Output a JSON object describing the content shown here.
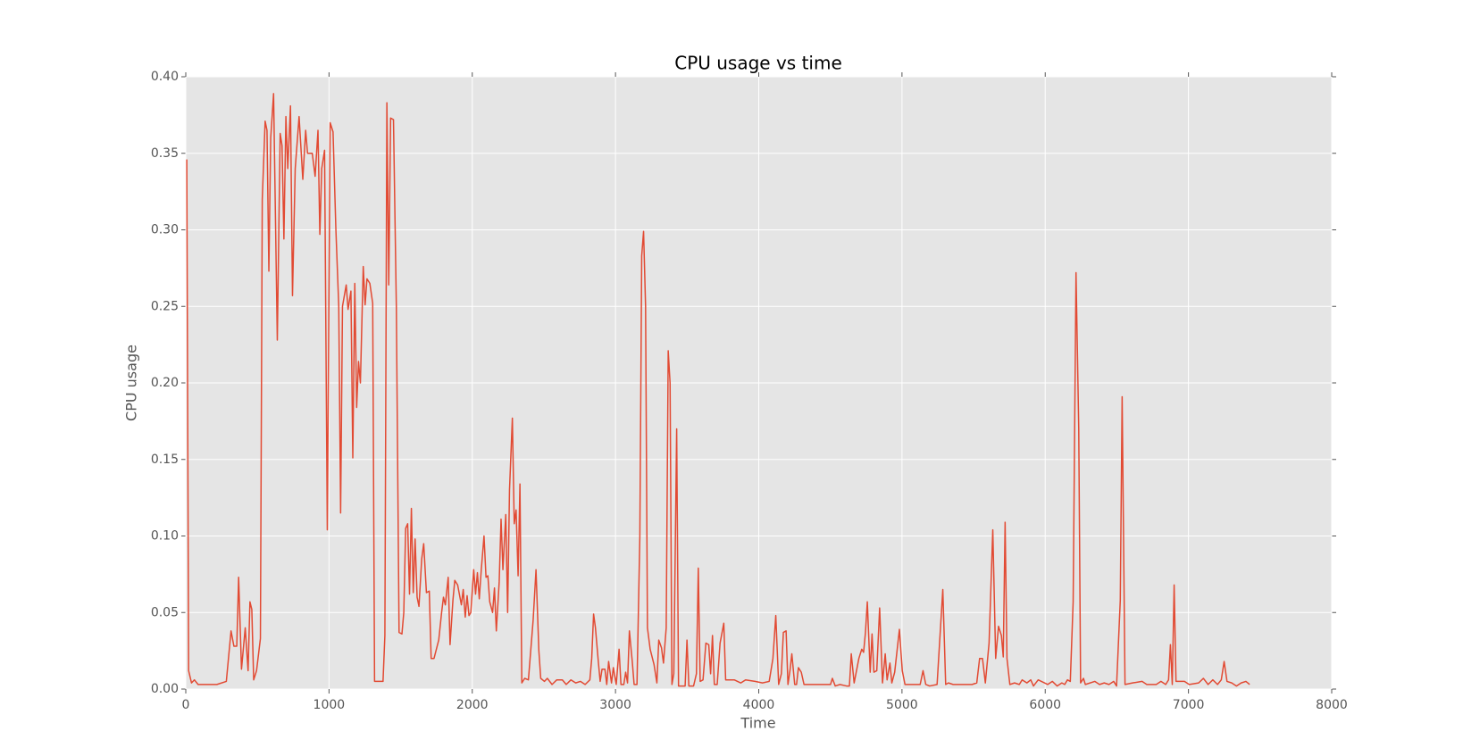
{
  "chart_data": {
    "type": "line",
    "title": "CPU usage vs time",
    "x_label": "Time",
    "y_label": "CPU usage",
    "xlim": [
      0,
      8000
    ],
    "xticks": [
      0,
      1000,
      2000,
      3000,
      4000,
      5000,
      6000,
      7000,
      8000
    ],
    "ylim": [
      0,
      0.4
    ],
    "yticks": [
      {
        "value": 0,
        "label": "0.00"
      },
      {
        "value": 0.05,
        "label": "0.05"
      },
      {
        "value": 0.1,
        "label": "0.10"
      },
      {
        "value": 0.15,
        "label": "0.15"
      },
      {
        "value": 0.2,
        "label": "0.20"
      },
      {
        "value": 0.25,
        "label": "0.25"
      },
      {
        "value": 0.3,
        "label": "0.30"
      },
      {
        "value": 0.35,
        "label": "0.35"
      },
      {
        "value": 0.4,
        "label": "0.40"
      }
    ],
    "grid": true,
    "x": [
      7,
      20,
      40,
      60,
      86,
      217,
      283,
      316,
      336,
      356,
      369,
      389,
      415,
      435,
      448,
      461,
      474,
      494,
      521,
      534,
      554,
      567,
      580,
      593,
      613,
      639,
      659,
      672,
      685,
      699,
      712,
      731,
      745,
      764,
      791,
      817,
      837,
      850,
      883,
      903,
      923,
      936,
      949,
      969,
      988,
      1008,
      1028,
      1048,
      1068,
      1081,
      1094,
      1120,
      1133,
      1153,
      1166,
      1180,
      1193,
      1206,
      1219,
      1239,
      1252,
      1265,
      1285,
      1305,
      1318,
      1377,
      1390,
      1404,
      1417,
      1430,
      1450,
      1470,
      1489,
      1509,
      1522,
      1535,
      1549,
      1562,
      1575,
      1588,
      1601,
      1615,
      1628,
      1647,
      1661,
      1680,
      1700,
      1713,
      1733,
      1766,
      1786,
      1799,
      1812,
      1832,
      1845,
      1865,
      1878,
      1898,
      1924,
      1937,
      1951,
      1964,
      1977,
      1990,
      2010,
      2023,
      2036,
      2049,
      2063,
      2082,
      2096,
      2109,
      2122,
      2142,
      2155,
      2168,
      2188,
      2201,
      2214,
      2234,
      2247,
      2260,
      2280,
      2293,
      2306,
      2320,
      2333,
      2346,
      2366,
      2392,
      2425,
      2445,
      2465,
      2478,
      2504,
      2524,
      2557,
      2590,
      2629,
      2656,
      2689,
      2722,
      2755,
      2788,
      2821,
      2834,
      2847,
      2860,
      2880,
      2893,
      2906,
      2926,
      2939,
      2952,
      2972,
      2985,
      3005,
      3025,
      3038,
      3058,
      3071,
      3084,
      3097,
      3117,
      3130,
      3150,
      3170,
      3183,
      3196,
      3210,
      3223,
      3242,
      3269,
      3289,
      3302,
      3321,
      3335,
      3354,
      3368,
      3381,
      3394,
      3407,
      3427,
      3440,
      3486,
      3499,
      3512,
      3545,
      3565,
      3578,
      3591,
      3611,
      3631,
      3651,
      3664,
      3677,
      3690,
      3710,
      3730,
      3756,
      3769,
      3829,
      3875,
      3908,
      3974,
      4026,
      4073,
      4099,
      4119,
      4139,
      4158,
      4172,
      4191,
      4204,
      4218,
      4231,
      4251,
      4264,
      4277,
      4297,
      4316,
      4435,
      4501,
      4514,
      4534,
      4567,
      4613,
      4633,
      4646,
      4666,
      4699,
      4719,
      4732,
      4745,
      4758,
      4778,
      4791,
      4804,
      4824,
      4844,
      4864,
      4883,
      4896,
      4916,
      4929,
      4949,
      4982,
      5002,
      5021,
      5127,
      5147,
      5166,
      5193,
      5245,
      5285,
      5305,
      5324,
      5357,
      5489,
      5522,
      5542,
      5562,
      5582,
      5608,
      5634,
      5654,
      5674,
      5694,
      5707,
      5720,
      5733,
      5753,
      5786,
      5819,
      5839,
      5872,
      5899,
      5918,
      5951,
      6017,
      6050,
      6083,
      6116,
      6136,
      6155,
      6175,
      6195,
      6215,
      6234,
      6247,
      6267,
      6280,
      6346,
      6379,
      6412,
      6445,
      6478,
      6498,
      6524,
      6537,
      6557,
      6610,
      6676,
      6709,
      6775,
      6808,
      6841,
      6861,
      6874,
      6887,
      6900,
      6913,
      6972,
      7005,
      7071,
      7104,
      7137,
      7170,
      7203,
      7229,
      7249,
      7269,
      7302,
      7335,
      7368,
      7401,
      7427
    ],
    "series": [
      {
        "name": "CPU usage",
        "color": "#E24A33",
        "values": [
          0.346,
          0.012,
          0.004,
          0.006,
          0.003,
          0.003,
          0.005,
          0.038,
          0.028,
          0.028,
          0.073,
          0.013,
          0.04,
          0.012,
          0.057,
          0.052,
          0.006,
          0.012,
          0.033,
          0.32,
          0.371,
          0.365,
          0.273,
          0.36,
          0.389,
          0.228,
          0.363,
          0.355,
          0.294,
          0.374,
          0.34,
          0.381,
          0.257,
          0.34,
          0.374,
          0.333,
          0.365,
          0.35,
          0.35,
          0.335,
          0.365,
          0.297,
          0.34,
          0.352,
          0.104,
          0.37,
          0.364,
          0.3,
          0.25,
          0.115,
          0.25,
          0.264,
          0.248,
          0.26,
          0.151,
          0.265,
          0.184,
          0.214,
          0.2,
          0.276,
          0.251,
          0.268,
          0.265,
          0.252,
          0.005,
          0.005,
          0.035,
          0.383,
          0.264,
          0.373,
          0.372,
          0.25,
          0.037,
          0.036,
          0.05,
          0.105,
          0.108,
          0.062,
          0.118,
          0.063,
          0.098,
          0.06,
          0.054,
          0.085,
          0.095,
          0.063,
          0.064,
          0.02,
          0.02,
          0.032,
          0.05,
          0.06,
          0.055,
          0.073,
          0.029,
          0.058,
          0.071,
          0.068,
          0.055,
          0.065,
          0.047,
          0.061,
          0.048,
          0.05,
          0.078,
          0.062,
          0.076,
          0.059,
          0.078,
          0.1,
          0.073,
          0.074,
          0.057,
          0.05,
          0.066,
          0.038,
          0.07,
          0.111,
          0.078,
          0.114,
          0.05,
          0.13,
          0.177,
          0.108,
          0.117,
          0.074,
          0.134,
          0.004,
          0.007,
          0.006,
          0.045,
          0.078,
          0.025,
          0.007,
          0.005,
          0.007,
          0.003,
          0.006,
          0.006,
          0.003,
          0.006,
          0.004,
          0.005,
          0.003,
          0.006,
          0.02,
          0.049,
          0.04,
          0.018,
          0.005,
          0.013,
          0.013,
          0.003,
          0.018,
          0.004,
          0.014,
          0.003,
          0.026,
          0.003,
          0.003,
          0.011,
          0.004,
          0.038,
          0.018,
          0.003,
          0.003,
          0.1,
          0.283,
          0.299,
          0.25,
          0.04,
          0.026,
          0.016,
          0.004,
          0.032,
          0.027,
          0.017,
          0.04,
          0.221,
          0.2,
          0.003,
          0.01,
          0.17,
          0.002,
          0.002,
          0.032,
          0.002,
          0.002,
          0.01,
          0.079,
          0.005,
          0.006,
          0.03,
          0.029,
          0.01,
          0.035,
          0.003,
          0.003,
          0.03,
          0.043,
          0.006,
          0.006,
          0.004,
          0.006,
          0.005,
          0.004,
          0.005,
          0.02,
          0.048,
          0.003,
          0.01,
          0.037,
          0.038,
          0.003,
          0.012,
          0.023,
          0.003,
          0.003,
          0.014,
          0.011,
          0.003,
          0.003,
          0.003,
          0.007,
          0.002,
          0.003,
          0.002,
          0.002,
          0.023,
          0.004,
          0.02,
          0.026,
          0.024,
          0.037,
          0.057,
          0.011,
          0.036,
          0.011,
          0.012,
          0.053,
          0.004,
          0.023,
          0.006,
          0.017,
          0.004,
          0.011,
          0.039,
          0.012,
          0.003,
          0.003,
          0.012,
          0.003,
          0.002,
          0.003,
          0.065,
          0.003,
          0.004,
          0.003,
          0.003,
          0.004,
          0.02,
          0.02,
          0.004,
          0.03,
          0.104,
          0.02,
          0.041,
          0.035,
          0.021,
          0.109,
          0.02,
          0.003,
          0.004,
          0.003,
          0.006,
          0.004,
          0.006,
          0.002,
          0.006,
          0.003,
          0.005,
          0.002,
          0.004,
          0.003,
          0.006,
          0.005,
          0.057,
          0.272,
          0.17,
          0.004,
          0.007,
          0.003,
          0.005,
          0.003,
          0.004,
          0.003,
          0.005,
          0.002,
          0.058,
          0.191,
          0.003,
          0.004,
          0.005,
          0.003,
          0.003,
          0.005,
          0.003,
          0.006,
          0.029,
          0.003,
          0.068,
          0.005,
          0.005,
          0.003,
          0.004,
          0.007,
          0.003,
          0.006,
          0.003,
          0.006,
          0.018,
          0.005,
          0.004,
          0.002,
          0.004,
          0.005,
          0.003
        ]
      }
    ]
  }
}
